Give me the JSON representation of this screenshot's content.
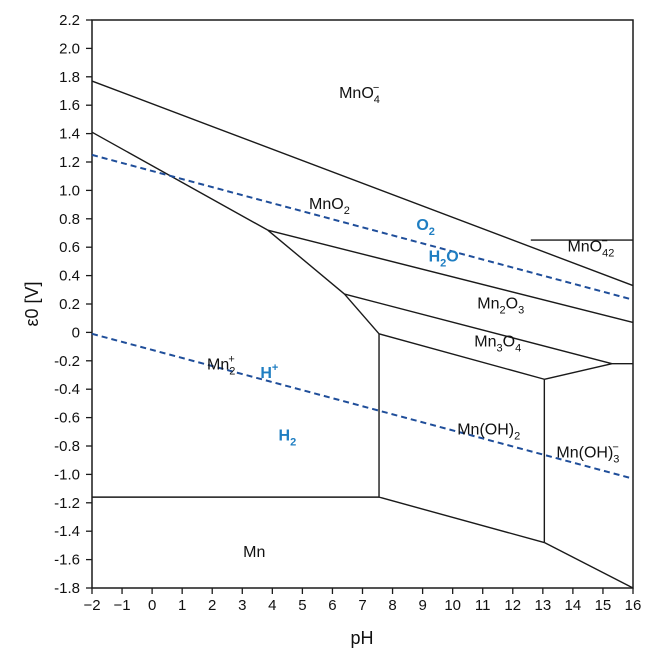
{
  "chart_data": {
    "type": "line",
    "xlabel": "pH",
    "ylabel": "ε0 [V]",
    "xlim": [
      -2,
      16
    ],
    "ylim": [
      -1.8,
      2.2
    ],
    "x_ticks": [
      -2,
      -1,
      0,
      1,
      2,
      3,
      4,
      5,
      6,
      7,
      8,
      9,
      10,
      11,
      12,
      13,
      14,
      15,
      16
    ],
    "x_tick_labels": [
      "−2",
      "−1",
      "0",
      "1",
      "2",
      "3",
      "4",
      "5",
      "6",
      "7",
      "8",
      "9",
      "10",
      "11",
      "12",
      "13",
      "14",
      "15",
      "16"
    ],
    "y_ticks": [
      2.2,
      2.0,
      1.8,
      1.6,
      1.4,
      1.2,
      1.0,
      0.8,
      0.6,
      0.4,
      0.2,
      0,
      -0.2,
      -0.4,
      -0.6,
      -0.8,
      -1.0,
      -1.2,
      -1.4,
      -1.6,
      -1.8
    ],
    "y_tick_labels": [
      "2.2",
      "2.0",
      "1.8",
      "1.6",
      "1.4",
      "1.2",
      "1.0",
      "0.8",
      "0.6",
      "0.4",
      "0.2",
      "0",
      "-0.2",
      "-0.4",
      "-0.6",
      "-0.8",
      "-1.0",
      "-1.2",
      "-1.4",
      "-1.6",
      "-1.8"
    ],
    "grid": false,
    "boundary_color": "#1a1a1a",
    "water_line_color": "#1f4e9a",
    "water_label_color": "#1f7ec2",
    "boundaries": [
      {
        "points": [
          [
            -2,
            1.77
          ],
          [
            16,
            0.33
          ]
        ]
      },
      {
        "points": [
          [
            -2,
            1.41
          ],
          [
            3.85,
            0.72
          ]
        ]
      },
      {
        "points": [
          [
            3.85,
            0.72
          ],
          [
            16,
            0.07
          ]
        ]
      },
      {
        "points": [
          [
            3.85,
            0.72
          ],
          [
            6.4,
            0.27
          ]
        ]
      },
      {
        "points": [
          [
            6.4,
            0.27
          ],
          [
            15.3,
            -0.22
          ]
        ]
      },
      {
        "points": [
          [
            6.4,
            0.27
          ],
          [
            7.55,
            -0.01
          ]
        ]
      },
      {
        "points": [
          [
            7.55,
            -0.01
          ],
          [
            13.05,
            -0.33
          ]
        ]
      },
      {
        "points": [
          [
            13.05,
            -0.33
          ],
          [
            15.3,
            -0.22
          ]
        ]
      },
      {
        "points": [
          [
            15.3,
            -0.22
          ],
          [
            16,
            -0.22
          ]
        ]
      },
      {
        "points": [
          [
            7.55,
            -0.01
          ],
          [
            7.55,
            -1.16
          ]
        ]
      },
      {
        "points": [
          [
            -2,
            -1.16
          ],
          [
            7.55,
            -1.16
          ]
        ]
      },
      {
        "points": [
          [
            7.55,
            -1.16
          ],
          [
            13.05,
            -1.48
          ]
        ]
      },
      {
        "points": [
          [
            13.05,
            -0.33
          ],
          [
            13.05,
            -1.48
          ]
        ]
      },
      {
        "points": [
          [
            13.05,
            -1.48
          ],
          [
            16,
            -1.8
          ]
        ]
      },
      {
        "points": [
          [
            12.6,
            0.65
          ],
          [
            16,
            0.65
          ]
        ]
      }
    ],
    "water_lines": [
      {
        "points": [
          [
            -2,
            1.25
          ],
          [
            16,
            0.23
          ]
        ]
      },
      {
        "points": [
          [
            -2,
            -0.01
          ],
          [
            16,
            -1.03
          ]
        ]
      }
    ],
    "region_labels": [
      {
        "label": "MnO4−",
        "x": 6.9,
        "y": 1.65
      },
      {
        "label": "MnO2",
        "x": 5.9,
        "y": 0.87
      },
      {
        "label": "MnO42−",
        "x": 14.6,
        "y": 0.57
      },
      {
        "label": "Mn2O3",
        "x": 11.6,
        "y": 0.17
      },
      {
        "label": "Mn3O4",
        "x": 11.5,
        "y": -0.1
      },
      {
        "label": "Mn2+",
        "x": 2.3,
        "y": -0.26
      },
      {
        "label": "Mn(OH)2",
        "x": 11.2,
        "y": -0.72
      },
      {
        "label": "Mn(OH)3−",
        "x": 14.5,
        "y": -0.88
      },
      {
        "label": "Mn",
        "x": 3.4,
        "y": -1.58
      }
    ],
    "water_labels": [
      {
        "label": "O2",
        "x": 9.1,
        "y": 0.72
      },
      {
        "label": "H2O",
        "x": 9.7,
        "y": 0.5
      },
      {
        "label": "H+",
        "x": 3.9,
        "y": -0.32
      },
      {
        "label": "H2",
        "x": 4.5,
        "y": -0.76
      }
    ]
  }
}
